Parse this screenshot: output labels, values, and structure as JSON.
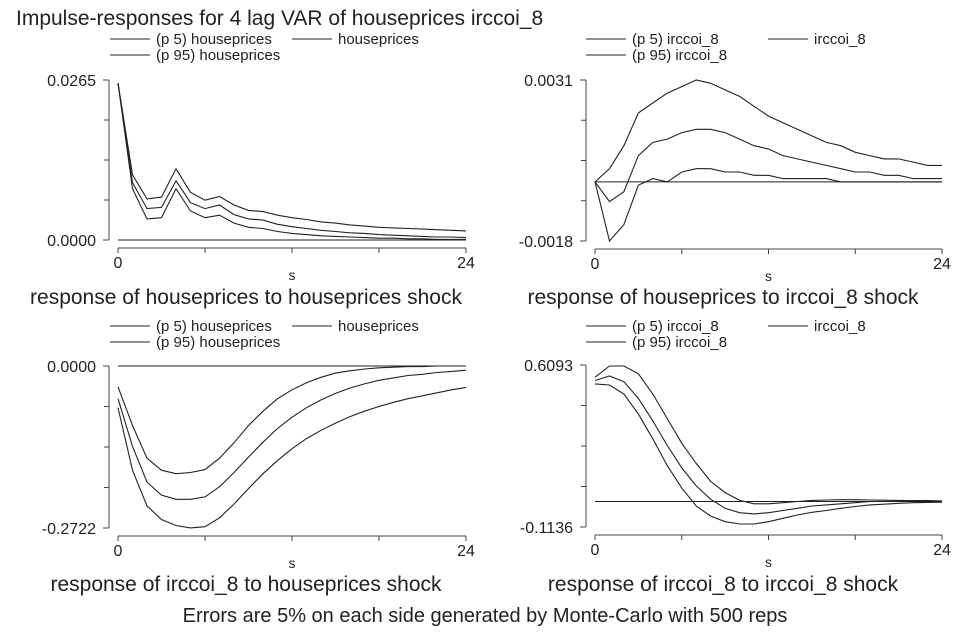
{
  "figure": {
    "title": "Impulse-responses for 4 lag VAR of houseprices irccoi_8",
    "footer": "Errors are 5% on each side generated by Monte-Carlo with 500 reps"
  },
  "chart_data": [
    {
      "type": "line",
      "title": "response of houseprices to houseprices shock",
      "xlabel": "s",
      "x": [
        0,
        1,
        2,
        3,
        4,
        5,
        6,
        7,
        8,
        9,
        10,
        11,
        12,
        13,
        14,
        15,
        16,
        17,
        18,
        19,
        20,
        21,
        22,
        23,
        24
      ],
      "xlim": [
        0,
        24
      ],
      "ylim": [
        0.0,
        0.0265
      ],
      "x_tick_labels": [
        "0",
        "24"
      ],
      "y_tick_labels": [
        "0.0000",
        "0.0265"
      ],
      "legend": [
        "(p 5) houseprices",
        "houseprices",
        "(p 95) houseprices"
      ],
      "series": [
        {
          "name": "(p 5) houseprices",
          "values": [
            0.026,
            0.0085,
            0.0035,
            0.0037,
            0.0085,
            0.0048,
            0.0037,
            0.0041,
            0.0028,
            0.0021,
            0.0019,
            0.0014,
            0.0011,
            0.0009,
            0.0007,
            0.0006,
            0.0005,
            0.0004,
            0.0003,
            0.0003,
            0.0002,
            0.0002,
            0.0001,
            0.0001,
            0.0001
          ]
        },
        {
          "name": "houseprices",
          "values": [
            0.026,
            0.0095,
            0.0052,
            0.0054,
            0.0098,
            0.0062,
            0.0052,
            0.0058,
            0.0042,
            0.0035,
            0.0033,
            0.0026,
            0.0022,
            0.0019,
            0.0016,
            0.0014,
            0.0012,
            0.0011,
            0.0009,
            0.0008,
            0.0007,
            0.0006,
            0.0005,
            0.0005,
            0.0004
          ]
        },
        {
          "name": "(p 95) houseprices",
          "values": [
            0.026,
            0.0108,
            0.0068,
            0.0071,
            0.0118,
            0.0079,
            0.0066,
            0.0072,
            0.0058,
            0.0049,
            0.0047,
            0.0041,
            0.0037,
            0.0034,
            0.003,
            0.0028,
            0.0025,
            0.0023,
            0.0021,
            0.002,
            0.0019,
            0.0018,
            0.0017,
            0.0016,
            0.0015
          ]
        }
      ],
      "zero_line": 0.0
    },
    {
      "type": "line",
      "title": "response of houseprices to irccoi_8 shock",
      "xlabel": "s",
      "x": [
        0,
        1,
        2,
        3,
        4,
        5,
        6,
        7,
        8,
        9,
        10,
        11,
        12,
        13,
        14,
        15,
        16,
        17,
        18,
        19,
        20,
        21,
        22,
        23,
        24
      ],
      "xlim": [
        0,
        24
      ],
      "ylim": [
        -0.0018,
        0.0031
      ],
      "x_tick_labels": [
        "0",
        "24"
      ],
      "y_tick_labels": [
        "-0.0018",
        "0.0031"
      ],
      "legend": [
        "(p 5) irccoi_8",
        "irccoi_8",
        "(p 95) irccoi_8"
      ],
      "series": [
        {
          "name": "(p 5) irccoi_8",
          "values": [
            0.0,
            -0.0018,
            -0.0013,
            -0.0001,
            0.0001,
            0.0,
            0.0003,
            0.0004,
            0.0004,
            0.0003,
            0.0003,
            0.0002,
            0.0002,
            0.0001,
            0.0001,
            0.0001,
            0.0001,
            0.0,
            0.0,
            0.0,
            0.0,
            0.0,
            0.0,
            0.0,
            0.0
          ]
        },
        {
          "name": "irccoi_8",
          "values": [
            0.0,
            -0.0006,
            -0.0003,
            0.0008,
            0.0012,
            0.0013,
            0.0015,
            0.0016,
            0.0016,
            0.0015,
            0.0013,
            0.0011,
            0.001,
            0.0008,
            0.0007,
            0.0006,
            0.0005,
            0.0004,
            0.0003,
            0.0003,
            0.0002,
            0.0002,
            0.0001,
            0.0001,
            0.0001
          ]
        },
        {
          "name": "(p 95) irccoi_8",
          "values": [
            0.0,
            0.0004,
            0.0011,
            0.0021,
            0.0024,
            0.0027,
            0.0029,
            0.0031,
            0.003,
            0.0028,
            0.0026,
            0.0023,
            0.002,
            0.0018,
            0.0016,
            0.0014,
            0.0012,
            0.0011,
            0.0009,
            0.0008,
            0.0007,
            0.0007,
            0.0006,
            0.0005,
            0.0005
          ]
        }
      ],
      "zero_line": 0.0
    },
    {
      "type": "line",
      "title": "response of irccoi_8 to houseprices shock",
      "xlabel": "s",
      "x": [
        0,
        1,
        2,
        3,
        4,
        5,
        6,
        7,
        8,
        9,
        10,
        11,
        12,
        13,
        14,
        15,
        16,
        17,
        18,
        19,
        20,
        21,
        22,
        23,
        24
      ],
      "xlim": [
        0,
        24
      ],
      "ylim": [
        -0.2722,
        0.0
      ],
      "x_tick_labels": [
        "0",
        "24"
      ],
      "y_tick_labels": [
        "0.0000",
        "-0.2722"
      ],
      "legend": [
        "(p 5) houseprices",
        "houseprices",
        "(p 95) houseprices"
      ],
      "series": [
        {
          "name": "(p 5) houseprices",
          "values": [
            -0.07,
            -0.175,
            -0.235,
            -0.258,
            -0.268,
            -0.272,
            -0.27,
            -0.255,
            -0.232,
            -0.206,
            -0.181,
            -0.159,
            -0.139,
            -0.122,
            -0.108,
            -0.096,
            -0.085,
            -0.076,
            -0.068,
            -0.061,
            -0.055,
            -0.05,
            -0.045,
            -0.04,
            -0.036
          ]
        },
        {
          "name": "houseprices",
          "values": [
            -0.055,
            -0.135,
            -0.195,
            -0.217,
            -0.224,
            -0.224,
            -0.22,
            -0.203,
            -0.179,
            -0.153,
            -0.128,
            -0.105,
            -0.086,
            -0.07,
            -0.057,
            -0.046,
            -0.037,
            -0.03,
            -0.024,
            -0.02,
            -0.016,
            -0.014,
            -0.011,
            -0.009,
            -0.007
          ]
        },
        {
          "name": "(p 95) houseprices",
          "values": [
            -0.035,
            -0.1,
            -0.155,
            -0.175,
            -0.181,
            -0.179,
            -0.174,
            -0.155,
            -0.129,
            -0.1,
            -0.076,
            -0.055,
            -0.04,
            -0.028,
            -0.019,
            -0.012,
            -0.008,
            -0.005,
            -0.003,
            -0.002,
            -0.001,
            -0.001,
            0.0,
            0.0,
            0.0
          ]
        }
      ],
      "zero_line": 0.0
    },
    {
      "type": "line",
      "title": "response of irccoi_8 to irccoi_8 shock",
      "xlabel": "s",
      "x": [
        0,
        1,
        2,
        3,
        4,
        5,
        6,
        7,
        8,
        9,
        10,
        11,
        12,
        13,
        14,
        15,
        16,
        17,
        18,
        19,
        20,
        21,
        22,
        23,
        24
      ],
      "xlim": [
        0,
        24
      ],
      "ylim": [
        -0.1136,
        0.6093
      ],
      "x_tick_labels": [
        "0",
        "24"
      ],
      "y_tick_labels": [
        "0.6093",
        "-0.1136"
      ],
      "legend": [
        "(p 5) irccoi_8",
        "irccoi_8",
        "(p 95) irccoi_8"
      ],
      "series": [
        {
          "name": "(p 5) irccoi_8",
          "values": [
            0.525,
            0.52,
            0.48,
            0.39,
            0.28,
            0.16,
            0.06,
            -0.02,
            -0.065,
            -0.09,
            -0.1,
            -0.1,
            -0.09,
            -0.075,
            -0.06,
            -0.048,
            -0.04,
            -0.03,
            -0.022,
            -0.015,
            -0.012,
            -0.008,
            -0.005,
            -0.004,
            -0.003
          ]
        },
        {
          "name": "irccoi_8",
          "values": [
            0.54,
            0.56,
            0.535,
            0.46,
            0.36,
            0.25,
            0.15,
            0.07,
            0.01,
            -0.03,
            -0.05,
            -0.055,
            -0.05,
            -0.04,
            -0.03,
            -0.02,
            -0.015,
            -0.01,
            -0.005,
            0.0,
            0.0,
            0.0,
            0.002,
            0.002,
            0.002
          ]
        },
        {
          "name": "(p 95) irccoi_8",
          "values": [
            0.555,
            0.605,
            0.605,
            0.57,
            0.48,
            0.37,
            0.26,
            0.17,
            0.09,
            0.04,
            0.005,
            -0.01,
            -0.01,
            -0.005,
            0.0,
            0.005,
            0.007,
            0.008,
            0.008,
            0.007,
            0.006,
            0.005,
            0.004,
            0.004,
            0.003
          ]
        }
      ],
      "zero_line": 0.0
    }
  ]
}
